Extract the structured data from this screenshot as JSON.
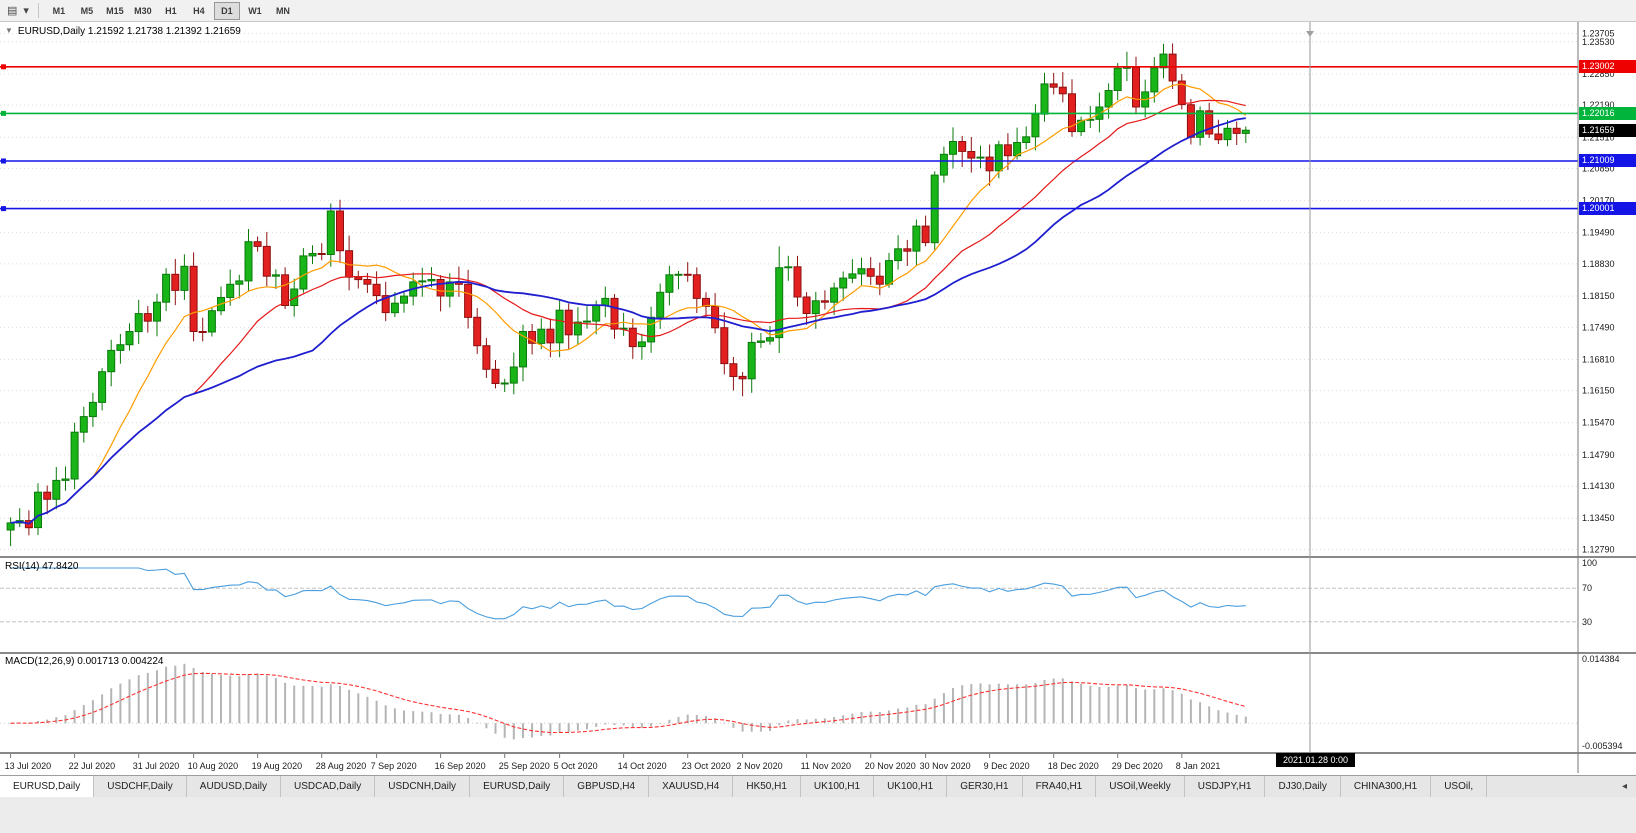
{
  "toolbar": {
    "charts_icon_glyph": "▤",
    "caret_glyph": "▾",
    "timeframes": [
      "M1",
      "M5",
      "M15",
      "M30",
      "H1",
      "H4",
      "D1",
      "W1",
      "MN"
    ],
    "active_timeframe": "D1"
  },
  "chart": {
    "title": "EURUSD,Daily 1.21592 1.21738 1.21392 1.21659",
    "collapse_glyph": "▼",
    "rsi_label": "RSI(14) 47.8420",
    "macd_label": "MACD(12,26,9) 0.001713 0.004224",
    "tooltip": "2021.01.28 0:00"
  },
  "tabs": {
    "active_index": 0,
    "scroll_left_glyph": "◂",
    "items": [
      "EURUSD,Daily",
      "USDCHF,Daily",
      "AUDUSD,Daily",
      "USDCAD,Daily",
      "USDCNH,Daily",
      "EURUSD,Daily",
      "GBPUSD,H4",
      "XAUUSD,H4",
      "HK50,H1",
      "UK100,H1",
      "UK100,H1",
      "GER30,H1",
      "FRA40,H1",
      "USOil,Weekly",
      "USDJPY,H1",
      "DJ30,Daily",
      "CHINA300,H1",
      "USOil,"
    ],
    "all_interactable": true
  },
  "chart_data": {
    "type": "candlestick",
    "symbol": "EURUSD",
    "timeframe": "Daily",
    "last_ohlc": {
      "open": 1.21592,
      "high": 1.21738,
      "low": 1.21392,
      "close": 1.21659
    },
    "first_open": 1.132,
    "closes": [
      1.1335,
      1.134,
      1.1325,
      1.14,
      1.1385,
      1.1425,
      1.1428,
      1.1527,
      1.156,
      1.159,
      1.1655,
      1.17,
      1.1712,
      1.174,
      1.1778,
      1.1762,
      1.1802,
      1.1861,
      1.1827,
      1.1878,
      1.174,
      1.1739,
      1.1784,
      1.1812,
      1.184,
      1.1847,
      1.193,
      1.192,
      1.1857,
      1.186,
      1.1795,
      1.183,
      1.19,
      1.1905,
      1.1903,
      1.1995,
      1.1911,
      1.1855,
      1.185,
      1.184,
      1.1816,
      1.178,
      1.18,
      1.1815,
      1.1845,
      1.1847,
      1.185,
      1.1815,
      1.1845,
      1.184,
      1.177,
      1.171,
      1.166,
      1.163,
      1.1631,
      1.1665,
      1.174,
      1.1715,
      1.1745,
      1.1716,
      1.1785,
      1.1733,
      1.176,
      1.1762,
      1.1795,
      1.181,
      1.1745,
      1.1747,
      1.1708,
      1.1718,
      1.177,
      1.1823,
      1.186,
      1.1861,
      1.186,
      1.181,
      1.1793,
      1.1748,
      1.1672,
      1.1645,
      1.164,
      1.1717,
      1.172,
      1.1727,
      1.1875,
      1.1877,
      1.1813,
      1.1778,
      1.1805,
      1.1802,
      1.1832,
      1.1853,
      1.1862,
      1.1873,
      1.1857,
      1.184,
      1.189,
      1.1915,
      1.191,
      1.1963,
      1.1928,
      1.2071,
      1.2115,
      1.2142,
      1.2121,
      1.2107,
      1.2109,
      1.208,
      1.2135,
      1.2112,
      1.214,
      1.2152,
      1.22,
      1.2264,
      1.2257,
      1.2243,
      1.2163,
      1.2187,
      1.2189,
      1.2215,
      1.225,
      1.2297,
      1.2299,
      1.2215,
      1.2247,
      1.2298,
      1.2327,
      1.227,
      1.222,
      1.2151,
      1.2207,
      1.2158,
      1.2146,
      1.217,
      1.21592,
      1.21659
    ],
    "wick_min": 0.0007,
    "wick_var": 0.0026,
    "wick_overrides": {
      "0": {
        "l": 1.1286
      },
      "35": {
        "h": 1.2011
      },
      "54": {
        "l": 1.1612
      },
      "80": {
        "l": 1.1603
      },
      "84": {
        "h": 1.192
      },
      "126": {
        "h": 1.2349
      },
      "135": {
        "o": 1.21592,
        "h": 1.21738,
        "l": 1.21392
      }
    },
    "price_min": 1.1265,
    "price_max": 1.2378,
    "price_ticks": [
      {
        "v": 1.23705,
        "label": "1.23705"
      },
      {
        "v": 1.2353,
        "label": "1.23530"
      },
      {
        "v": 1.2285,
        "label": "1.22850"
      },
      {
        "v": 1.2219,
        "label": "1.22190"
      },
      {
        "v": 1.2151,
        "label": "1.21510"
      },
      {
        "v": 1.2085,
        "label": "1.20850"
      },
      {
        "v": 1.2017,
        "label": "1.20170"
      },
      {
        "v": 1.1949,
        "label": "1.19490"
      },
      {
        "v": 1.1883,
        "label": "1.18830"
      },
      {
        "v": 1.1815,
        "label": "1.18150"
      },
      {
        "v": 1.1749,
        "label": "1.17490"
      },
      {
        "v": 1.1681,
        "label": "1.16810"
      },
      {
        "v": 1.1615,
        "label": "1.16150"
      },
      {
        "v": 1.1547,
        "label": "1.15470"
      },
      {
        "v": 1.1479,
        "label": "1.14790"
      },
      {
        "v": 1.1413,
        "label": "1.14130"
      },
      {
        "v": 1.1345,
        "label": "1.13450"
      },
      {
        "v": 1.1279,
        "label": "1.12790"
      }
    ],
    "hlines": [
      {
        "price": 1.23002,
        "color": "#ee0000",
        "label": "1.23002",
        "text_color": "#ffffff",
        "width": 1.6
      },
      {
        "price": 1.22016,
        "color": "#00b43c",
        "label": "1.22016",
        "text_color": "#ffffff",
        "width": 1.6
      },
      {
        "price": 1.21009,
        "color": "#1414e6",
        "label": "1.21009",
        "text_color": "#ffffff",
        "width": 1.6
      },
      {
        "price": 1.20001,
        "color": "#1414e6",
        "label": "1.20001",
        "text_color": "#ffffff",
        "width": 1.6
      }
    ],
    "current_price": {
      "price": 1.21659,
      "label": "1.21659",
      "bg": "#000000",
      "text_color": "#ffffff"
    },
    "mas": [
      {
        "period": 10,
        "color": "#ff9c00",
        "width": 1.2
      },
      {
        "period": 21,
        "color": "#e51919",
        "width": 1.2
      },
      {
        "period": 34,
        "color": "#1f1fd0",
        "width": 1.8
      }
    ],
    "rsi": {
      "period": 14,
      "value": "47.8420",
      "color": "#4a9ede",
      "levels": [
        70,
        30
      ],
      "ticks": [
        "100",
        "70",
        "30"
      ],
      "tick_values": [
        100,
        70,
        30
      ]
    },
    "macd": {
      "fast": 12,
      "slow": 26,
      "signal_period": 9,
      "main": "0.001713",
      "signal": "0.004224",
      "max": 0.014384,
      "min": -0.005394,
      "tick_labels": [
        "0.014384",
        "-0.005394"
      ],
      "hist_color": "#b5b5b5",
      "signal_color": "#ff3333"
    },
    "dates": [
      {
        "i": 0,
        "label": "13 Jul 2020"
      },
      {
        "i": 7,
        "label": "22 Jul 2020"
      },
      {
        "i": 14,
        "label": "31 Jul 2020"
      },
      {
        "i": 20,
        "label": "10 Aug 2020"
      },
      {
        "i": 27,
        "label": "19 Aug 2020"
      },
      {
        "i": 34,
        "label": "28 Aug 2020"
      },
      {
        "i": 40,
        "label": "7 Sep 2020"
      },
      {
        "i": 47,
        "label": "16 Sep 2020"
      },
      {
        "i": 54,
        "label": "25 Sep 2020"
      },
      {
        "i": 60,
        "label": "5 Oct 2020"
      },
      {
        "i": 67,
        "label": "14 Oct 2020"
      },
      {
        "i": 74,
        "label": "23 Oct 2020"
      },
      {
        "i": 80,
        "label": "2 Nov 2020"
      },
      {
        "i": 87,
        "label": "11 Nov 2020"
      },
      {
        "i": 94,
        "label": "20 Nov 2020"
      },
      {
        "i": 100,
        "label": "30 Nov 2020"
      },
      {
        "i": 107,
        "label": "9 Dec 2020"
      },
      {
        "i": 114,
        "label": "18 Dec 2020"
      },
      {
        "i": 121,
        "label": "29 Dec 2020"
      },
      {
        "i": 128,
        "label": "8 Jan 2021"
      }
    ],
    "colors": {
      "up": "#18b418",
      "up_border": "#0b7a0b",
      "down": "#e22020",
      "down_border": "#8d1010",
      "grid": "#dcdcdc",
      "separator": "#888888",
      "vline": "#9a9a9a",
      "axis_border": "#777777"
    }
  }
}
